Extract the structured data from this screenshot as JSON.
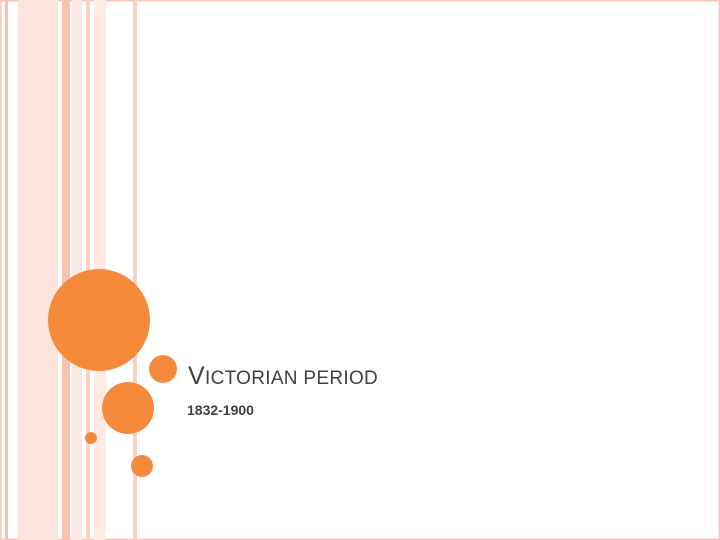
{
  "slide": {
    "title": "VICTORIAN PERIOD",
    "subtitle": "1832-1900"
  }
}
